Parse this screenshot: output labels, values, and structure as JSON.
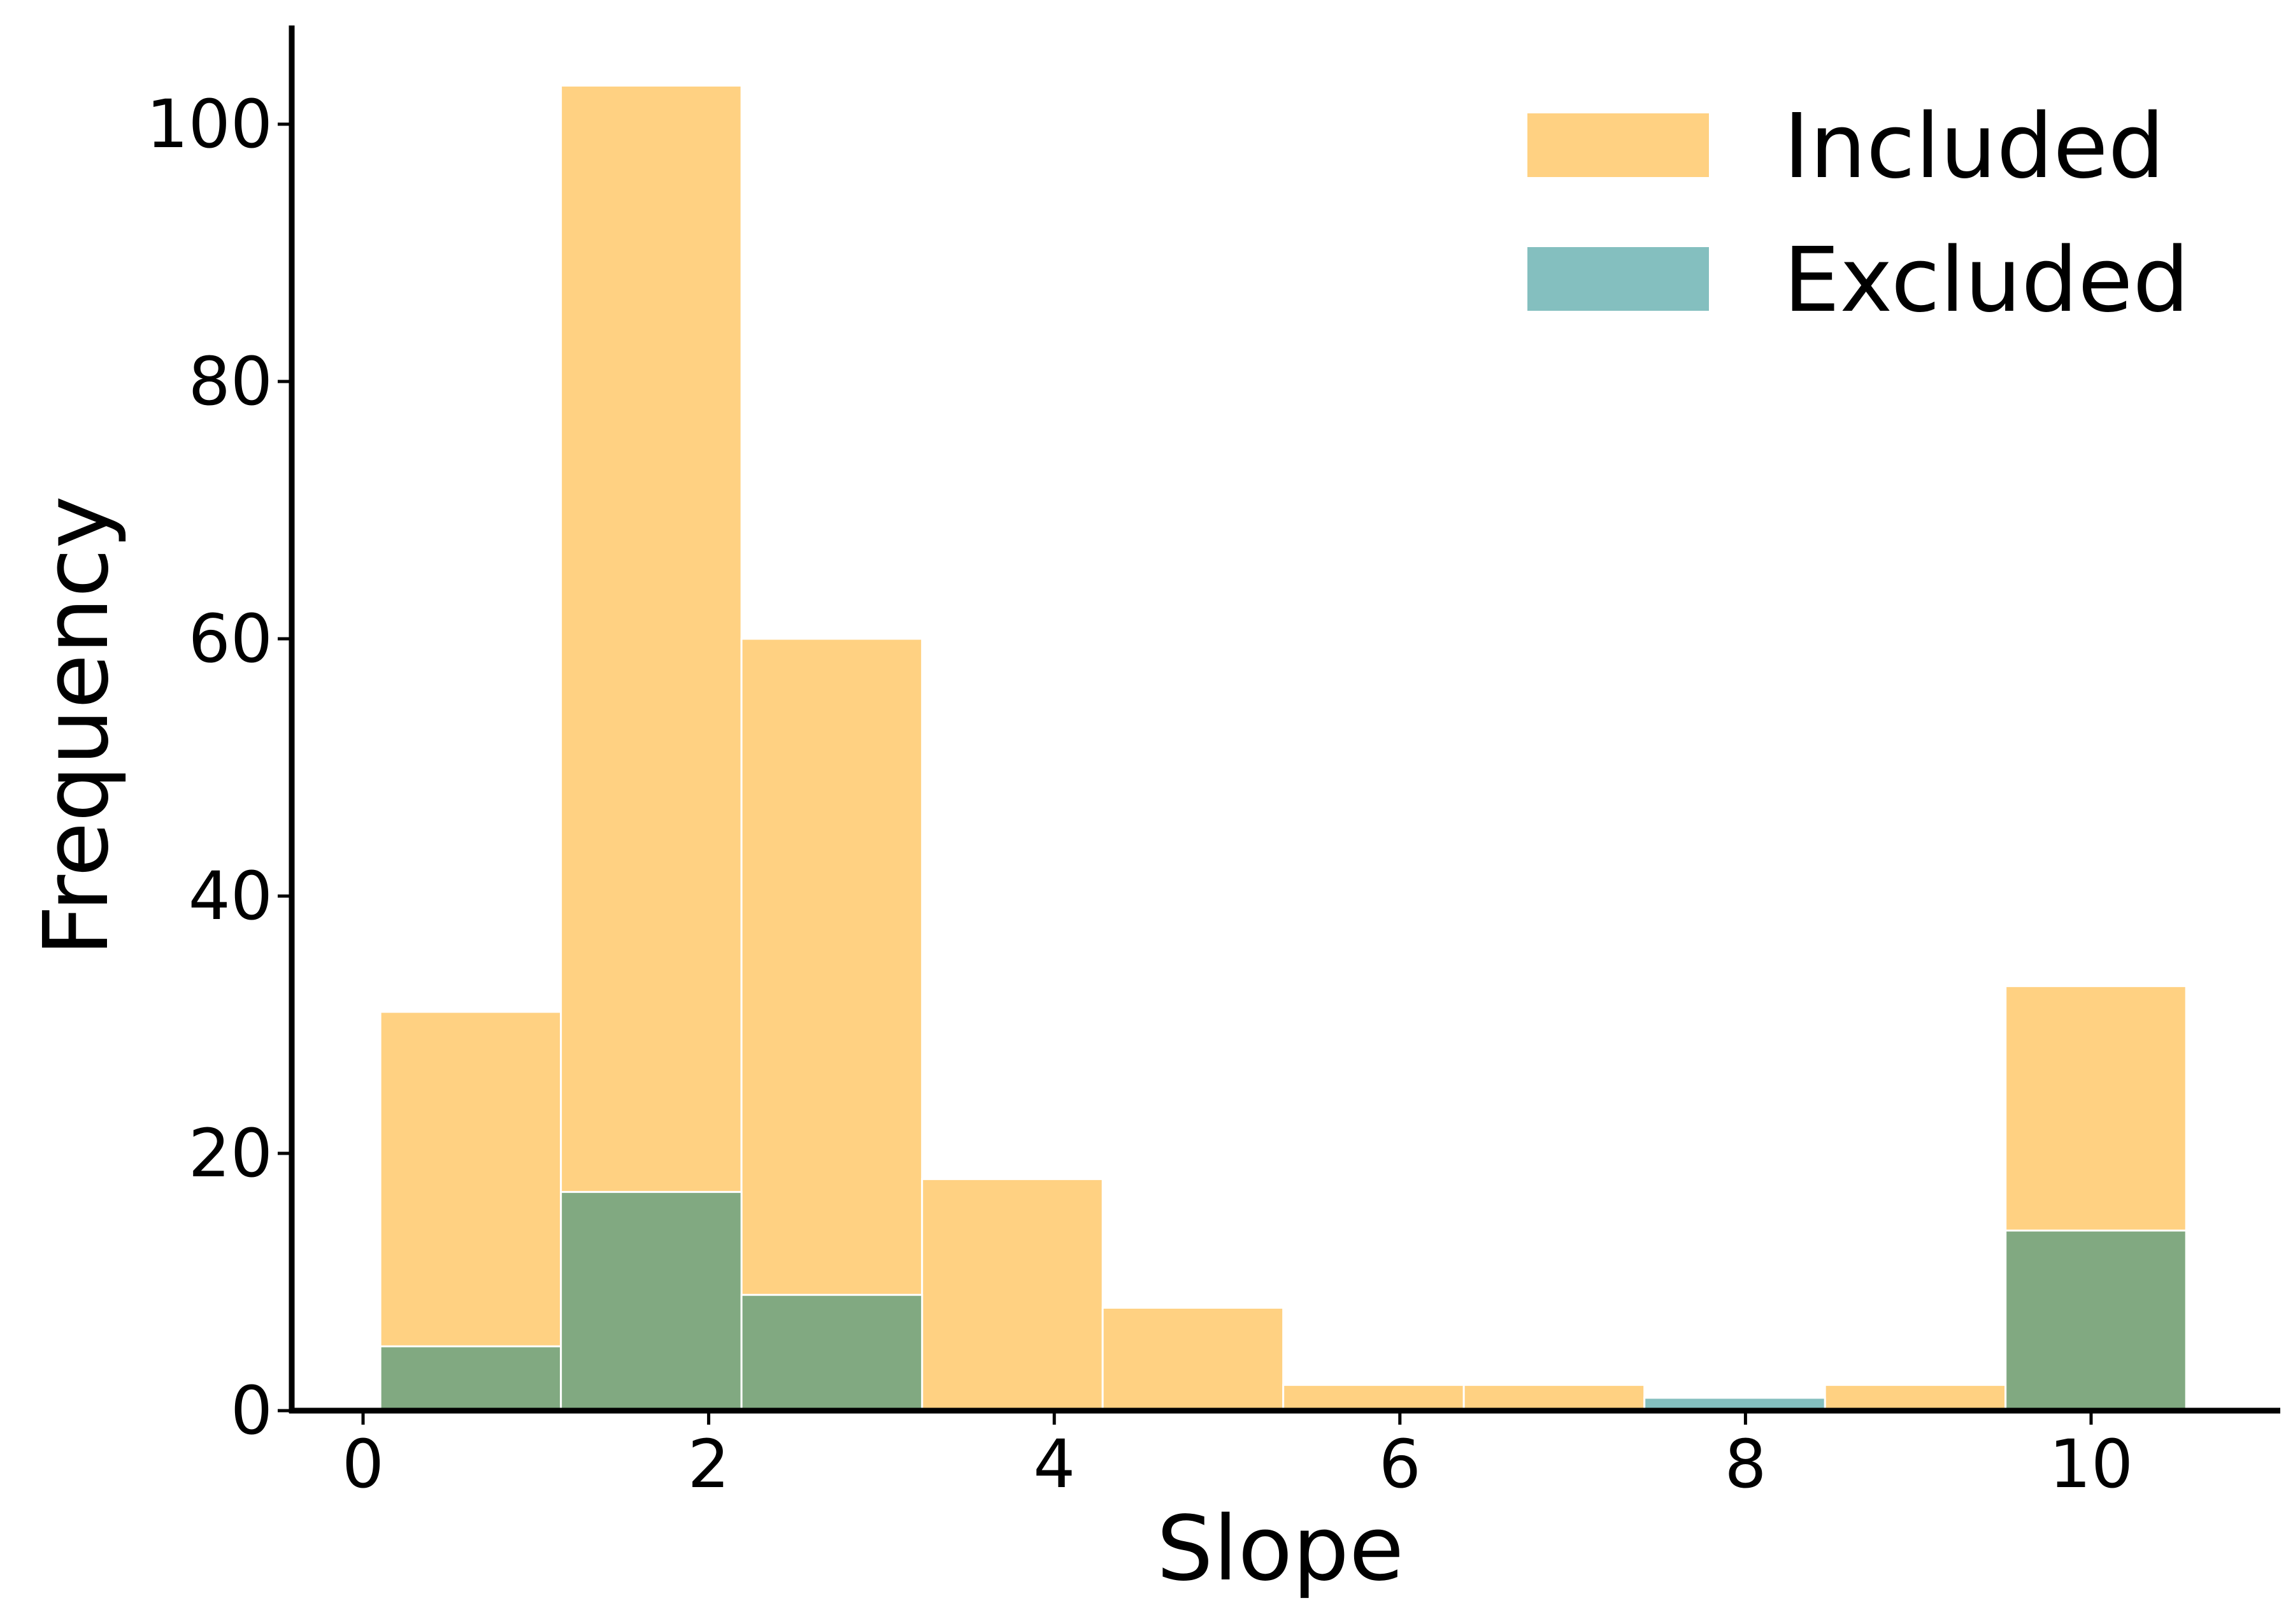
{
  "chart_data": {
    "type": "bar",
    "stacked": false,
    "overlaid": true,
    "xlabel": "Slope",
    "ylabel": "Frequency",
    "xlim": [
      -0.4,
      11.1
    ],
    "ylim": [
      0,
      108
    ],
    "xticks": [
      0,
      2,
      4,
      6,
      8,
      10
    ],
    "yticks": [
      0,
      20,
      40,
      60,
      80,
      100
    ],
    "bin_edges": [
      0.1,
      1.145,
      2.19,
      3.235,
      4.28,
      5.325,
      6.37,
      7.415,
      8.46,
      9.505,
      10.55
    ],
    "series": [
      {
        "name": "Included",
        "color": "#ffd182",
        "values": [
          31,
          103,
          60,
          18,
          8,
          2,
          2,
          0,
          2,
          33
        ]
      },
      {
        "name": "Excluded",
        "color": "#84bfbf",
        "values": [
          5,
          17,
          9,
          0,
          0,
          0,
          0,
          1,
          0,
          14
        ]
      }
    ],
    "overlap_color": "#81a981",
    "grid": false,
    "legend_position": "top-right"
  }
}
